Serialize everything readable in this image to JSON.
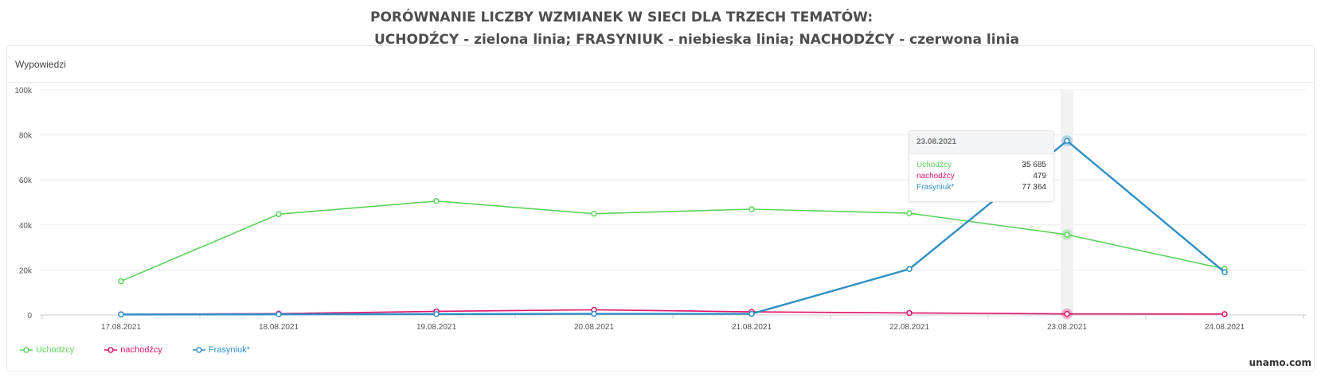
{
  "title": {
    "line1": "PORÓWNANIE LICZBY WZMIANEK W SIECI DLA TRZECH TEMATÓW:",
    "line2": "UCHODŹCY - zielona linia; FRASYNIUK - niebieska linia; NACHODŹCY - czerwona linia"
  },
  "panel": {
    "header": "Wypowiedzi"
  },
  "brand": "unamo.com",
  "colors": {
    "uchodzcy": "#5bd25b",
    "nachodzcy": "#e0136b",
    "frasyniuk": "#2f8fc4"
  },
  "tooltip": {
    "date": "23.08.2021",
    "rows": [
      {
        "label": "Uchodźcy",
        "value": "35 685",
        "color": "#5bd25b"
      },
      {
        "label": "nachodźcy",
        "value": "479",
        "color": "#e0136b"
      },
      {
        "label": "Frasyniuk*",
        "value": "77 364",
        "color": "#2f8fc4"
      }
    ]
  },
  "chart_data": {
    "type": "line",
    "title": "",
    "xlabel": "",
    "ylabel": "Wypowiedzi",
    "categories": [
      "17.08.2021",
      "18.08.2021",
      "19.08.2021",
      "20.08.2021",
      "21.08.2021",
      "22.08.2021",
      "23.08.2021",
      "24.08.2021"
    ],
    "ylim": [
      0,
      100000
    ],
    "yticks": [
      0,
      20000,
      40000,
      60000,
      80000,
      100000
    ],
    "ytick_labels": [
      "0",
      "20k",
      "40k",
      "60k",
      "80k",
      "100k"
    ],
    "grid": true,
    "legend_position": "bottom-left",
    "highlighted_category": "23.08.2021",
    "series": [
      {
        "name": "Uchodźcy",
        "color": "#5bd25b",
        "values": [
          15000,
          44800,
          50600,
          45000,
          47000,
          45200,
          35685,
          20500
        ]
      },
      {
        "name": "nachodźcy",
        "color": "#e0136b",
        "values": [
          300,
          600,
          1600,
          2300,
          1400,
          900,
          479,
          400
        ]
      },
      {
        "name": "Frasyniuk*",
        "color": "#2f8fc4",
        "values": [
          200,
          300,
          400,
          500,
          500,
          20400,
          77364,
          19000
        ]
      }
    ]
  }
}
